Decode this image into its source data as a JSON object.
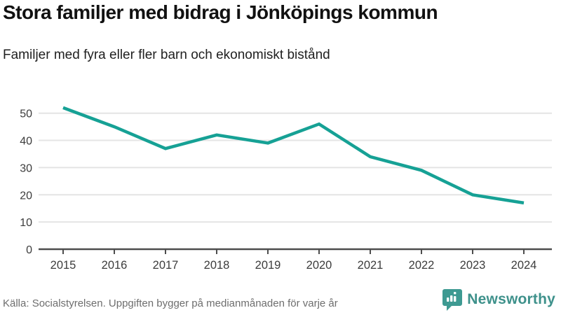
{
  "header": {
    "title": "Stora familjer med bidrag i Jönköpings kommun",
    "subtitle": "Familjer med fyra eller fler barn och ekonomiskt bistånd"
  },
  "footer": {
    "source": "Källa: Socialstyrelsen. Uppgiften bygger på medianmånaden för varje år",
    "brand": "Newsworthy"
  },
  "colors": {
    "line": "#16a195",
    "grid": "#e4e4e4",
    "axis": "#4d4d4d",
    "tick_text": "#3c3c3c",
    "footer_text": "#6e6e6e",
    "brand": "#3e918b"
  },
  "chart_data": {
    "type": "line",
    "title": "Stora familjer med bidrag i Jönköpings kommun",
    "subtitle": "Familjer med fyra eller fler barn och ekonomiskt bistånd",
    "categories": [
      "2015",
      "2016",
      "2017",
      "2018",
      "2019",
      "2020",
      "2021",
      "2022",
      "2023",
      "2024"
    ],
    "values": [
      52,
      45,
      37,
      42,
      39,
      46,
      34,
      29,
      20,
      17
    ],
    "xlabel": "",
    "ylabel": "",
    "ylim": [
      0,
      56
    ],
    "yticks": [
      0,
      10,
      20,
      30,
      40,
      50
    ],
    "grid": true,
    "legend": false
  }
}
